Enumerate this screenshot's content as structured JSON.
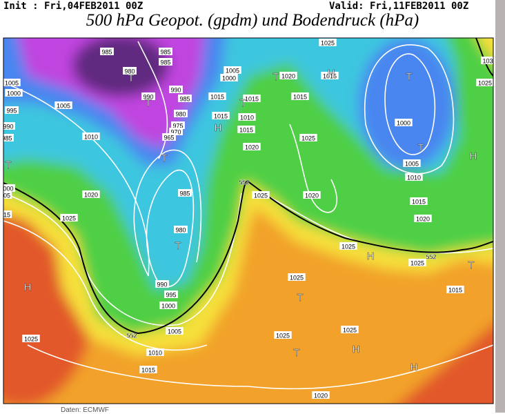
{
  "header": {
    "init": "Init : Fri,04FEB2011 00Z",
    "valid": "Valid: Fri,11FEB2011 00Z",
    "title": "500 hPa Geopot. (gpdm) und Bodendruck (hPa)"
  },
  "map": {
    "labels": [
      "985",
      "980",
      "985",
      "985",
      "990",
      "990",
      "985",
      "980",
      "975",
      "970",
      "965",
      "1005",
      "1000",
      "995",
      "990",
      "985",
      "1005",
      "1010",
      "1015",
      "1015",
      "1005",
      "1000",
      "1015",
      "1010",
      "1015",
      "1020",
      "1020",
      "1015",
      "1025",
      "1020",
      "1025",
      "1020",
      "1025",
      "985",
      "980",
      "990",
      "995",
      "1000",
      "1005",
      "1010",
      "1015",
      "1025",
      "1025",
      "1015",
      "1000",
      "1005",
      "1010",
      "1015",
      "1020",
      "1025",
      "1025",
      "1015",
      "1025",
      "1025",
      "1025",
      "1020",
      "1025",
      "103",
      "000",
      "05",
      "15"
    ],
    "geopotential_labels": [
      "552",
      "552",
      "552"
    ],
    "markers": [
      "T",
      "T",
      "T",
      "T",
      "T",
      "T",
      "H",
      "T",
      "T",
      "H",
      "H",
      "H",
      "T",
      "T",
      "H",
      "H",
      "H",
      "T",
      "T"
    ]
  },
  "footer": {
    "source": "Daten: ECMWF"
  }
}
